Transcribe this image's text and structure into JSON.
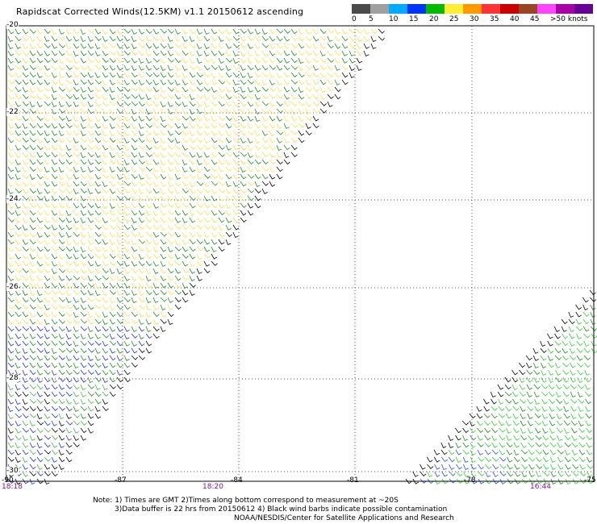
{
  "title": "Rapidscat Corrected Winds(12.5KM) v1.1 20150612 ascending",
  "legend": {
    "colors": [
      "#4a4a4a",
      "#a0a0a0",
      "#00aaff",
      "#0033ff",
      "#00bb00",
      "#ffee33",
      "#ff9900",
      "#ff3333",
      "#cc0000",
      "#994422",
      "#ff44ff",
      "#aa00aa",
      "#660099"
    ],
    "labels": [
      "0",
      "5",
      "10",
      "15",
      "20",
      "25",
      "30",
      "35",
      "40",
      "45",
      ">50 knots"
    ]
  },
  "lat_labels": [
    "-20",
    "-22",
    "-24",
    "-26",
    "-28",
    "-30"
  ],
  "lon_labels": [
    "-90",
    "-87",
    "-84",
    "-81",
    "-78",
    "-75"
  ],
  "times": [
    "18:18",
    "18:20",
    "16:44"
  ],
  "note": {
    "line1": "Note: 1) Times are GMT 2)Times along bottom correspond to measurement at ~20S",
    "line2": "3)Data buffer is 22 hrs from 20150612 4) Black wind barbs indicate possible contamination",
    "credit": "NOAA/NESDIS/Center for Satellite Applications and Research"
  },
  "swaths": [
    {
      "name": "west-swath",
      "colors": [
        "#f5e04a",
        "#1f8a1f",
        "#4ab04a",
        "#1f2fcc",
        "#000000"
      ]
    },
    {
      "name": "east-swath",
      "colors": [
        "#33cc33",
        "#1f8a1f",
        "#2a4fdd",
        "#000000"
      ]
    }
  ]
}
